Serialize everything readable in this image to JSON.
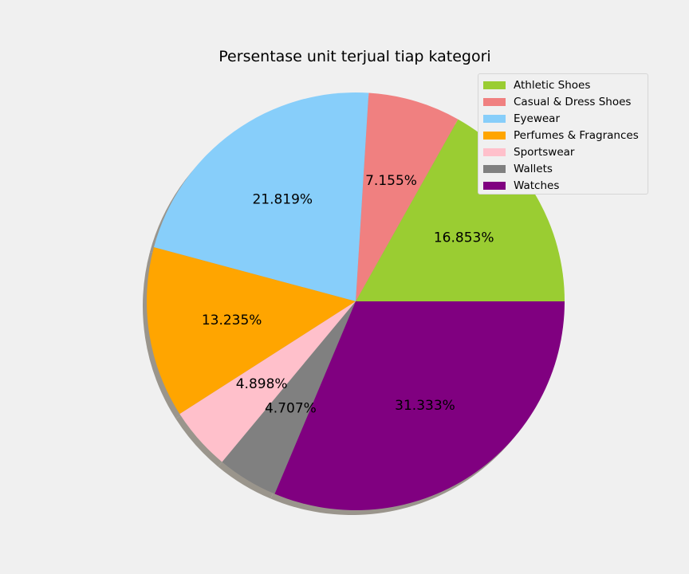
{
  "chart_data": {
    "type": "pie",
    "title": "Persentase unit terjual tiap kategori",
    "categories": [
      "Athletic Shoes",
      "Casual & Dress Shoes",
      "Eyewear",
      "Perfumes & Fragrances",
      "Sportswear",
      "Wallets",
      "Watches"
    ],
    "values": [
      16.853,
      7.155,
      21.819,
      13.235,
      4.898,
      4.707,
      31.333
    ],
    "labels": [
      "16.853%",
      "7.155%",
      "21.819%",
      "13.235%",
      "4.898%",
      "4.707%",
      "31.333%"
    ],
    "colors": [
      "#9acd32",
      "#f08080",
      "#87cefa",
      "#ffa500",
      "#ffc0cb",
      "#808080",
      "#800080"
    ],
    "start_angle_deg": 0,
    "direction": "counterclockwise",
    "shadow": true,
    "legend_position": "top-right"
  }
}
